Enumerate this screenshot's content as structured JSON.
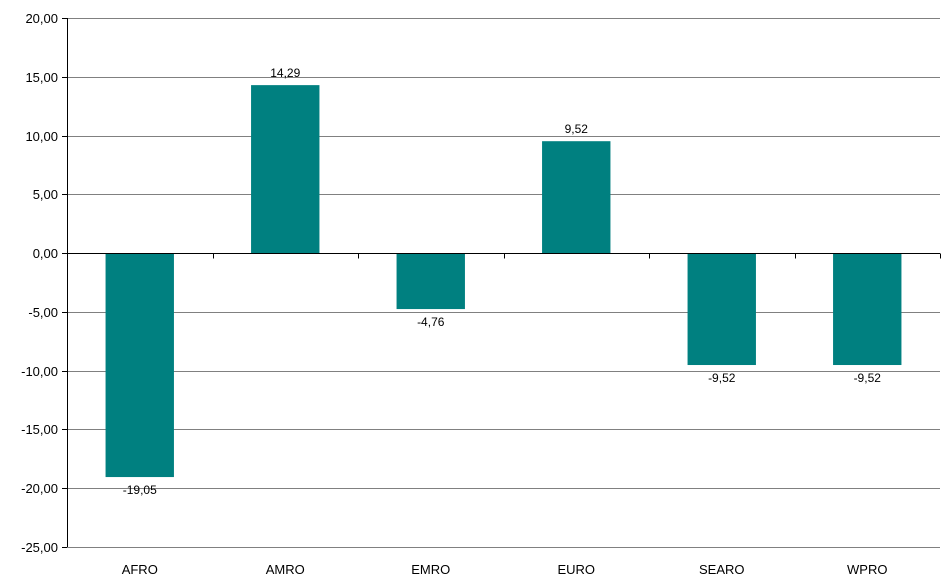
{
  "chart_data": {
    "type": "bar",
    "categories": [
      "AFRO",
      "AMRO",
      "EMRO",
      "EURO",
      "SEARO",
      "WPRO"
    ],
    "values": [
      -19.05,
      14.29,
      -4.76,
      9.52,
      -9.52,
      -9.52
    ],
    "value_labels": [
      "-19,05",
      "14,29",
      "-4,76",
      "9,52",
      "-9,52",
      "-9,52"
    ],
    "ylim": [
      -25,
      20
    ],
    "yticks": [
      20,
      15,
      10,
      5,
      0,
      -5,
      -10,
      -15,
      -20,
      -25
    ],
    "ytick_labels": [
      "20,00",
      "15,00",
      "10,00",
      "5,00",
      "0,00",
      "-5,00",
      "-10,00",
      "-15,00",
      "-20,00",
      "-25,00"
    ],
    "grid": true,
    "title": "",
    "xlabel": "",
    "ylabel": "",
    "bar_color": "#008080",
    "grid_color": "#808080"
  }
}
